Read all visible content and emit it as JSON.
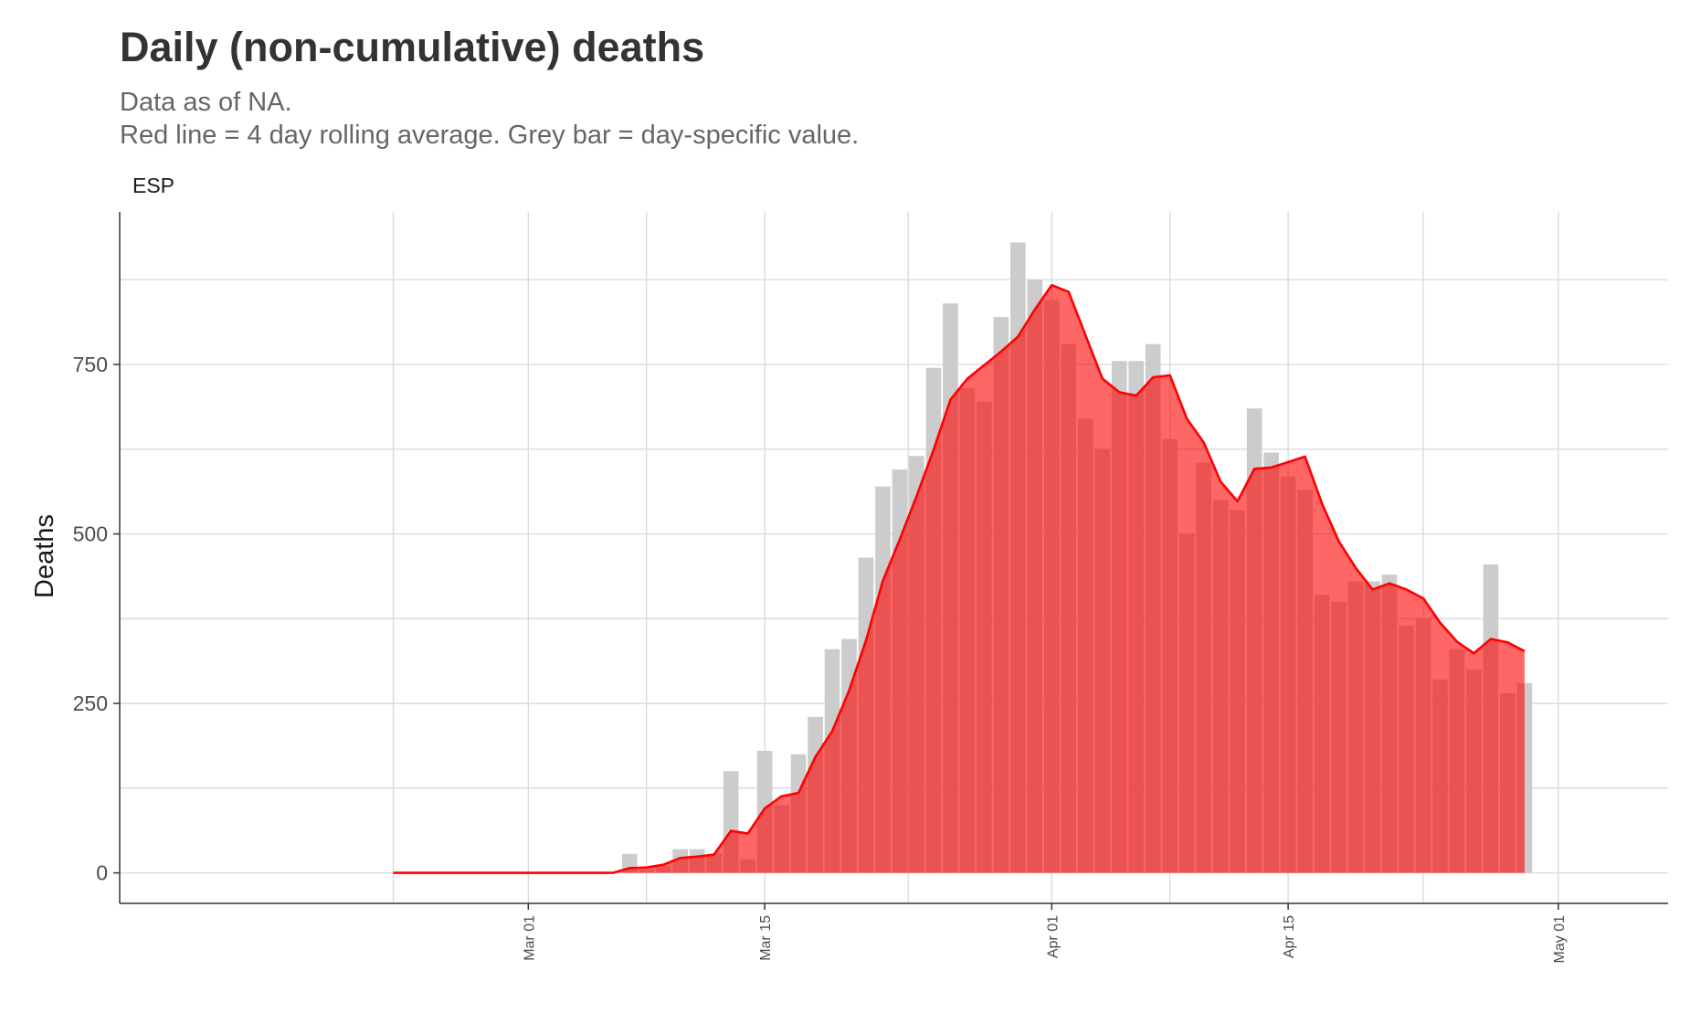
{
  "title": "Daily (non-cumulative) deaths",
  "subtitle_lines": [
    "Data as of NA.",
    "Red line = 4 day rolling average. Grey bar = day-specific value."
  ],
  "chart_data": {
    "type": "bar",
    "panel": "ESP",
    "ylabel": "Deaths",
    "xlabel": "",
    "x_start_date": "2020-02-22",
    "ylim": [
      -45,
      975
    ],
    "y_ticks": [
      0,
      250,
      500,
      750
    ],
    "x_ticks": [
      {
        "label": "Mar 01",
        "day": 8
      },
      {
        "label": "Mar 15",
        "day": 22
      },
      {
        "label": "Apr 01",
        "day": 39
      },
      {
        "label": "Apr 15",
        "day": 53
      },
      {
        "label": "May 01",
        "day": 69
      }
    ],
    "grid": true,
    "colors": {
      "bar": "#cccccc",
      "line": "#ff0000",
      "area": "#ff0000",
      "grid": "#d9d9d9",
      "axis": "#333333"
    },
    "series": [
      {
        "name": "Daily deaths",
        "kind": "bar",
        "values": [
          0,
          0,
          0,
          0,
          0,
          0,
          0,
          0,
          0,
          0,
          0,
          0,
          0,
          0,
          28,
          5,
          10,
          35,
          35,
          28,
          150,
          20,
          180,
          100,
          175,
          230,
          330,
          345,
          465,
          570,
          595,
          615,
          745,
          840,
          715,
          695,
          820,
          930,
          875,
          845,
          780,
          670,
          625,
          755,
          755,
          780,
          640,
          500,
          605,
          550,
          535,
          685,
          620,
          585,
          565,
          410,
          400,
          430,
          430,
          440,
          365,
          375,
          285,
          330,
          300,
          455,
          265,
          280
        ]
      },
      {
        "name": "4 day rolling average",
        "kind": "area",
        "values": [
          0,
          0,
          0,
          0,
          0,
          0,
          0,
          0,
          0,
          0,
          0,
          0,
          0,
          0,
          7,
          8,
          12,
          22,
          24,
          27,
          62,
          58,
          95,
          113,
          118,
          171,
          209,
          269,
          343,
          431,
          492,
          556,
          624,
          698,
          729,
          749,
          769,
          791,
          831,
          867,
          857,
          793,
          729,
          709,
          704,
          731,
          734,
          670,
          635,
          577,
          548,
          596,
          598,
          606,
          614,
          545,
          489,
          450,
          418,
          427,
          418,
          405,
          369,
          341,
          324,
          345,
          340,
          327
        ]
      }
    ]
  }
}
